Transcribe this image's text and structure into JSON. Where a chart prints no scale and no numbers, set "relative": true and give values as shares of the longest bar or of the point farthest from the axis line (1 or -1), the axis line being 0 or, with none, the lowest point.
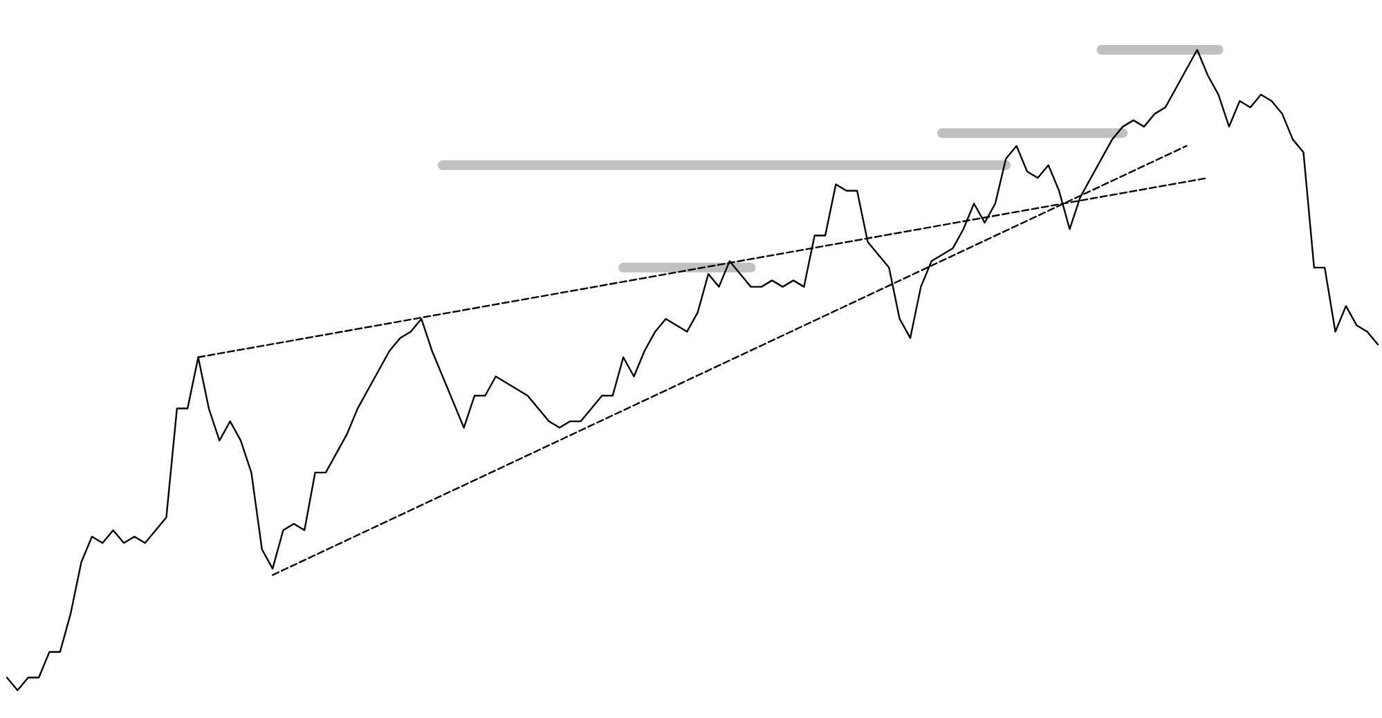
{
  "chart_data": {
    "type": "line",
    "relative": true,
    "categories": [
      null,
      null,
      null,
      null,
      null,
      null,
      null,
      null,
      null,
      null,
      null,
      null,
      null,
      null,
      null,
      null,
      null,
      null,
      null,
      null,
      null,
      null,
      null,
      null,
      null,
      null,
      null,
      null,
      null,
      null,
      null,
      null,
      null,
      null,
      null,
      null,
      null,
      null,
      null,
      null,
      null,
      null,
      null,
      null,
      null,
      null,
      null,
      null,
      null,
      null,
      null,
      null,
      null,
      null,
      null,
      null,
      null,
      null,
      null,
      null,
      null,
      null,
      null,
      null,
      null,
      null,
      null,
      null,
      null,
      null,
      null,
      null,
      null,
      null,
      null,
      null,
      null,
      null,
      null,
      null,
      null,
      null,
      null,
      null,
      null,
      null,
      null,
      null,
      null,
      null,
      null,
      null,
      null,
      null,
      null,
      null,
      null,
      null,
      null,
      null,
      null,
      null,
      null,
      null,
      null,
      null,
      null,
      null,
      null,
      null,
      null,
      null,
      null,
      null,
      null,
      null,
      null,
      null,
      null,
      null,
      null,
      null,
      null,
      null,
      null,
      null,
      null,
      null,
      null,
      null
    ],
    "series": [
      {
        "color": "#000000",
        "line_style": "solid",
        "values": [
          0.02,
          0,
          0.02,
          0.02,
          0.06,
          0.06,
          0.12,
          0.2,
          0.24,
          0.23,
          0.25,
          0.23,
          0.24,
          0.23,
          0.25,
          0.27,
          0.44,
          0.44,
          0.52,
          0.44,
          0.39,
          0.42,
          0.39,
          0.34,
          0.22,
          0.19,
          0.25,
          0.26,
          0.25,
          0.34,
          0.34,
          0.37,
          0.4,
          0.44,
          0.47,
          0.5,
          0.53,
          0.55,
          0.56,
          0.58,
          0.53,
          0.49,
          0.45,
          0.41,
          0.46,
          0.46,
          0.49,
          0.48,
          0.47,
          0.46,
          0.44,
          0.42,
          0.41,
          0.42,
          0.42,
          0.44,
          0.46,
          0.46,
          0.52,
          0.49,
          0.53,
          0.56,
          0.58,
          0.57,
          0.56,
          0.59,
          0.65,
          0.63,
          0.67,
          0.65,
          0.63,
          0.63,
          0.64,
          0.63,
          0.64,
          0.63,
          0.71,
          0.71,
          0.79,
          0.78,
          0.78,
          0.7,
          0.68,
          0.66,
          0.58,
          0.55,
          0.63,
          0.67,
          0.68,
          0.69,
          0.72,
          0.76,
          0.73,
          0.76,
          0.83,
          0.85,
          0.81,
          0.8,
          0.82,
          0.78,
          0.72,
          0.77,
          0.8,
          0.83,
          0.86,
          0.88,
          0.89,
          0.88,
          0.9,
          0.91,
          0.94,
          0.97,
          1,
          0.96,
          0.93,
          0.88,
          0.92,
          0.91,
          0.93,
          0.92,
          0.9,
          0.86,
          0.84,
          0.66,
          0.66,
          0.56,
          0.6,
          0.57,
          0.56,
          0.54
        ]
      },
      {
        "type": "line",
        "color": "#000000",
        "line_style": "dashed",
        "values": [
          null,
          null,
          null,
          null,
          null,
          null,
          null,
          null,
          null,
          null,
          null,
          null,
          null,
          null,
          null,
          null,
          null,
          null,
          null,
          null,
          null,
          null,
          null,
          null,
          null,
          0.18,
          null,
          null,
          null,
          null,
          null,
          null,
          null,
          null,
          null,
          null,
          null,
          null,
          null,
          null,
          null,
          null,
          null,
          null,
          null,
          null,
          null,
          null,
          null,
          null,
          null,
          null,
          null,
          null,
          null,
          null,
          null,
          null,
          null,
          null,
          null,
          null,
          null,
          null,
          null,
          null,
          null,
          null,
          null,
          null,
          null,
          null,
          null,
          null,
          null,
          null,
          null,
          null,
          null,
          null,
          null,
          null,
          null,
          null,
          null,
          null,
          null,
          null,
          null,
          null,
          null,
          null,
          null,
          null,
          null,
          null,
          null,
          null,
          null,
          null,
          null,
          null,
          null,
          null,
          null,
          null,
          null,
          null,
          null,
          null,
          null,
          0.85,
          null,
          null,
          null,
          null,
          null,
          null,
          null,
          null,
          null,
          null,
          null,
          null,
          null,
          null,
          null,
          null,
          null,
          null
        ]
      },
      {
        "type": "line",
        "color": "#000000",
        "line_style": "dashed",
        "values": [
          null,
          null,
          null,
          null,
          null,
          null,
          null,
          null,
          null,
          null,
          null,
          null,
          null,
          null,
          null,
          null,
          null,
          null,
          0.52,
          null,
          null,
          null,
          null,
          null,
          null,
          null,
          null,
          null,
          null,
          null,
          null,
          null,
          null,
          null,
          null,
          null,
          null,
          null,
          null,
          null,
          null,
          null,
          null,
          null,
          null,
          null,
          null,
          null,
          null,
          null,
          null,
          null,
          null,
          null,
          null,
          null,
          null,
          null,
          null,
          null,
          null,
          null,
          null,
          null,
          null,
          null,
          null,
          null,
          null,
          null,
          null,
          null,
          null,
          null,
          null,
          null,
          null,
          null,
          null,
          null,
          null,
          null,
          null,
          null,
          null,
          null,
          null,
          null,
          null,
          null,
          null,
          null,
          null,
          null,
          null,
          null,
          null,
          null,
          null,
          null,
          null,
          null,
          null,
          null,
          null,
          null,
          null,
          null,
          null,
          null,
          null,
          null,
          null,
          0.8,
          null,
          null,
          null,
          null,
          null,
          null,
          null,
          null,
          null,
          null,
          null,
          null,
          null,
          null,
          null,
          null
        ]
      },
      {
        "type": "line",
        "color": "#c0c0c0",
        "line_style": "solid",
        "values": [
          null,
          null,
          null,
          null,
          null,
          null,
          null,
          null,
          null,
          null,
          null,
          null,
          null,
          null,
          null,
          null,
          null,
          null,
          null,
          null,
          null,
          null,
          null,
          null,
          null,
          null,
          null,
          null,
          null,
          null,
          null,
          null,
          null,
          null,
          null,
          null,
          null,
          null,
          null,
          null,
          null,
          0.82,
          null,
          null,
          null,
          null,
          null,
          null,
          null,
          null,
          null,
          null,
          null,
          null,
          null,
          null,
          null,
          null,
          null,
          null,
          null,
          null,
          null,
          null,
          null,
          null,
          null,
          null,
          null,
          null,
          null,
          null,
          null,
          null,
          null,
          null,
          null,
          null,
          null,
          null,
          null,
          null,
          null,
          null,
          null,
          null,
          null,
          null,
          null,
          null,
          null,
          null,
          null,
          null,
          0.82,
          null,
          null,
          null,
          null,
          null,
          null,
          null,
          null,
          null,
          null,
          null,
          null,
          null,
          null,
          null,
          null,
          null,
          null,
          null,
          null,
          null,
          null,
          null,
          null,
          null,
          null,
          null,
          null,
          null,
          null,
          null,
          null,
          null,
          null,
          null
        ]
      },
      {
        "type": "line",
        "color": "#c0c0c0",
        "line_style": "solid",
        "values": [
          null,
          null,
          null,
          null,
          null,
          null,
          null,
          null,
          null,
          null,
          null,
          null,
          null,
          null,
          null,
          null,
          null,
          null,
          null,
          null,
          null,
          null,
          null,
          null,
          null,
          null,
          null,
          null,
          null,
          null,
          null,
          null,
          null,
          null,
          null,
          null,
          null,
          null,
          null,
          null,
          null,
          null,
          null,
          null,
          null,
          null,
          null,
          null,
          null,
          null,
          null,
          null,
          null,
          null,
          null,
          null,
          null,
          null,
          0.66,
          null,
          null,
          null,
          null,
          null,
          null,
          null,
          null,
          null,
          null,
          null,
          0.66,
          null,
          null,
          null,
          null,
          null,
          null,
          null,
          null,
          null,
          null,
          null,
          null,
          null,
          null,
          null,
          null,
          null,
          null,
          null,
          null,
          null,
          null,
          null,
          null,
          null,
          null,
          null,
          null,
          null,
          null,
          null,
          null,
          null,
          null,
          null,
          null,
          null,
          null,
          null,
          null,
          null,
          null,
          null,
          null,
          null,
          null,
          null,
          null,
          null,
          null,
          null,
          null,
          null,
          null,
          null,
          null,
          null,
          null,
          null
        ]
      },
      {
        "type": "line",
        "color": "#c0c0c0",
        "line_style": "solid",
        "values": [
          null,
          null,
          null,
          null,
          null,
          null,
          null,
          null,
          null,
          null,
          null,
          null,
          null,
          null,
          null,
          null,
          null,
          null,
          null,
          null,
          null,
          null,
          null,
          null,
          null,
          null,
          null,
          null,
          null,
          null,
          null,
          null,
          null,
          null,
          null,
          null,
          null,
          null,
          null,
          null,
          null,
          null,
          null,
          null,
          null,
          null,
          null,
          null,
          null,
          null,
          null,
          null,
          null,
          null,
          null,
          null,
          null,
          null,
          null,
          null,
          null,
          null,
          null,
          null,
          null,
          null,
          null,
          null,
          null,
          null,
          null,
          null,
          null,
          null,
          null,
          null,
          null,
          null,
          null,
          null,
          null,
          null,
          null,
          null,
          null,
          null,
          null,
          null,
          0.87,
          null,
          null,
          null,
          null,
          null,
          null,
          null,
          null,
          null,
          null,
          null,
          null,
          null,
          null,
          null,
          null,
          0.87,
          null,
          null,
          null,
          null,
          null,
          null,
          null,
          null,
          null,
          null,
          null,
          null,
          null,
          null,
          null,
          null,
          null,
          null,
          null,
          null,
          null,
          null,
          null,
          null
        ]
      },
      {
        "type": "line",
        "color": "#c0c0c0",
        "line_style": "solid",
        "values": [
          null,
          null,
          null,
          null,
          null,
          null,
          null,
          null,
          null,
          null,
          null,
          null,
          null,
          null,
          null,
          null,
          null,
          null,
          null,
          null,
          null,
          null,
          null,
          null,
          null,
          null,
          null,
          null,
          null,
          null,
          null,
          null,
          null,
          null,
          null,
          null,
          null,
          null,
          null,
          null,
          null,
          null,
          null,
          null,
          null,
          null,
          null,
          null,
          null,
          null,
          null,
          null,
          null,
          null,
          null,
          null,
          null,
          null,
          null,
          null,
          null,
          null,
          null,
          null,
          null,
          null,
          null,
          null,
          null,
          null,
          null,
          null,
          null,
          null,
          null,
          null,
          null,
          null,
          null,
          null,
          null,
          null,
          null,
          null,
          null,
          null,
          null,
          null,
          null,
          null,
          null,
          null,
          null,
          null,
          null,
          null,
          null,
          null,
          null,
          null,
          null,
          null,
          null,
          1,
          null,
          null,
          null,
          null,
          null,
          null,
          null,
          null,
          null,
          null,
          1,
          null,
          null,
          null,
          null,
          null,
          null,
          null,
          null,
          null,
          null,
          null,
          null,
          null,
          null,
          null
        ]
      }
    ]
  }
}
